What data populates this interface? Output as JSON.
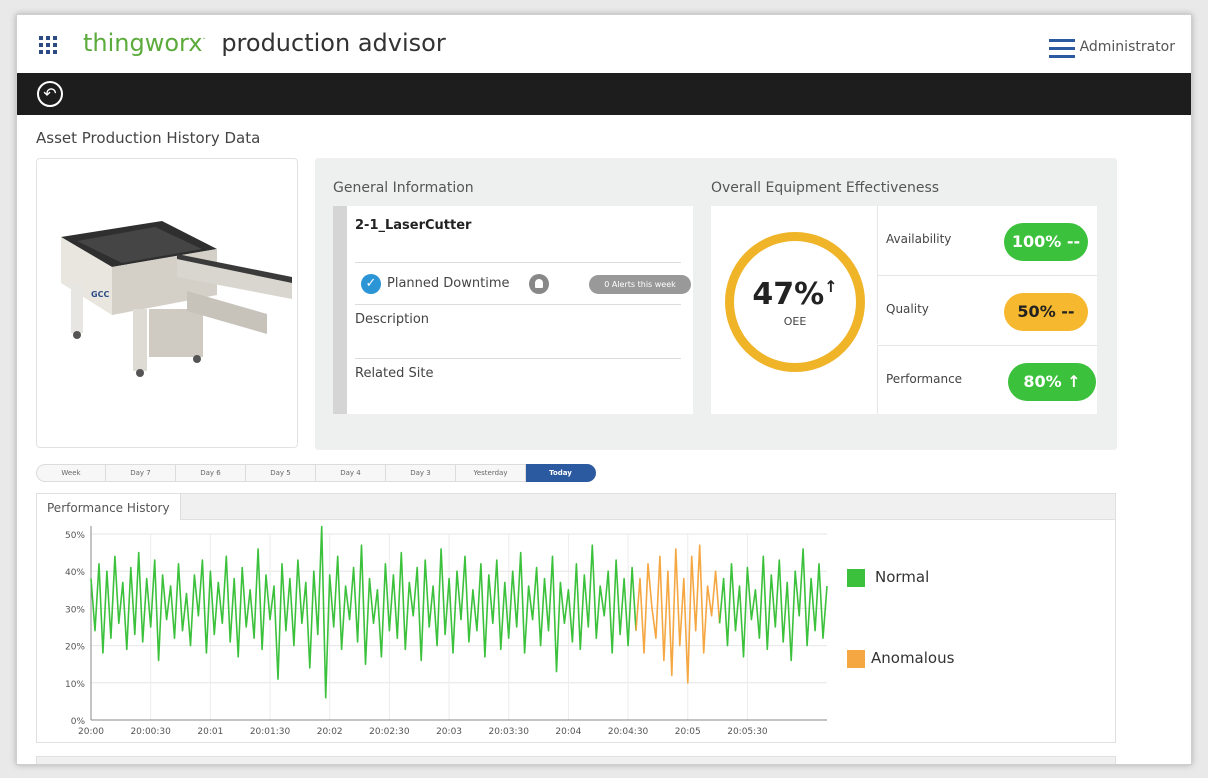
{
  "header": {
    "brand_name": "thingworx",
    "brand_mark": "·",
    "product": "production advisor",
    "user": "Administrator",
    "icons": {
      "apps": "apps-grid-icon",
      "menu": "hamburger-menu-icon",
      "back": "back-arrow-icon"
    }
  },
  "page": {
    "title": "Asset Production History Data"
  },
  "general": {
    "section_title": "General Information",
    "asset_name": "2-1_LaserCutter",
    "status": "Planned Downtime",
    "alerts": "0 Alerts this week",
    "description_label": "Description",
    "site_label": "Related Site"
  },
  "oee": {
    "section_title": "Overall Equipment Effectiveness",
    "value": "47%",
    "trend": "↑",
    "label": "OEE",
    "metrics": [
      {
        "label": "Availability",
        "value": "100% --",
        "color": "#3cc13c"
      },
      {
        "label": "Quality",
        "value": "50% --",
        "color": "#f5b82e"
      },
      {
        "label": "Performance",
        "value": "80% ↑",
        "color": "#3cc13c"
      }
    ]
  },
  "timeline": {
    "tabs": [
      "Week",
      "Day 7",
      "Day 6",
      "Day 5",
      "Day 4",
      "Day 3",
      "Yesterday",
      "Today"
    ],
    "selected": "Today"
  },
  "chart": {
    "tab_label": "Performance History",
    "legend": [
      {
        "label": "Normal",
        "color": "#3cc13c"
      },
      {
        "label": "Anomalous",
        "color": "#f5a742"
      }
    ]
  },
  "chart_data": {
    "type": "line",
    "title": "Performance History",
    "xlabel": "",
    "ylabel": "",
    "ylim": [
      0,
      50
    ],
    "yticks": [
      "0%",
      "10%",
      "20%",
      "30%",
      "40%",
      "50%"
    ],
    "xticks": [
      "20:00",
      "20:00:30",
      "20:01",
      "20:01:30",
      "20:02",
      "20:02:30",
      "20:03",
      "20:03:30",
      "20:04",
      "20:04:30",
      "20:05",
      "20:05:30"
    ],
    "x_range_seconds": [
      0,
      370
    ],
    "series": [
      {
        "name": "Normal",
        "color": "#3cc13c",
        "t": [
          0,
          2,
          4,
          6,
          8,
          10,
          12,
          14,
          16,
          18,
          20,
          22,
          24,
          26,
          28,
          30,
          32,
          34,
          36,
          38,
          40,
          42,
          44,
          46,
          48,
          50,
          52,
          54,
          56,
          58,
          60,
          62,
          64,
          66,
          68,
          70,
          72,
          74,
          76,
          78,
          80,
          82,
          84,
          86,
          88,
          90,
          92,
          94,
          96,
          98,
          100,
          102,
          104,
          106,
          108,
          110,
          112,
          114,
          116,
          118,
          120,
          122,
          124,
          126,
          128,
          130,
          132,
          134,
          136,
          138,
          140,
          142,
          144,
          146,
          148,
          150,
          152,
          154,
          156,
          158,
          160,
          162,
          164,
          166,
          168,
          170,
          172,
          174,
          176,
          178,
          180,
          182,
          184,
          186,
          188,
          190,
          192,
          194,
          196,
          198,
          200,
          202,
          204,
          206,
          208,
          210,
          212,
          214,
          216,
          218,
          220,
          222,
          224,
          226,
          228,
          230,
          232,
          234,
          236,
          238,
          240,
          242,
          244,
          246,
          248,
          250,
          252,
          254,
          256,
          258,
          260,
          262,
          264,
          266,
          268,
          270,
          272,
          274
        ],
        "values": [
          38,
          24,
          42,
          18,
          40,
          22,
          44,
          26,
          37,
          19,
          41,
          23,
          45,
          21,
          38,
          25,
          43,
          16,
          39,
          27,
          36,
          22,
          42,
          24,
          34,
          20,
          39,
          28,
          43,
          18,
          40,
          23,
          37,
          26,
          44,
          21,
          38,
          17,
          41,
          25,
          35,
          22,
          46,
          19,
          39,
          27,
          36,
          11,
          42,
          24,
          38,
          20,
          43,
          26,
          37,
          14,
          40,
          23,
          52,
          6,
          39,
          25,
          44,
          19,
          36,
          27,
          41,
          21,
          47,
          15,
          38,
          26,
          35,
          17,
          42,
          24,
          39,
          22,
          45,
          19,
          37,
          28,
          41,
          16,
          43,
          25,
          36,
          20,
          46,
          23,
          38,
          18,
          40,
          27,
          44,
          21,
          35,
          24,
          42,
          17,
          39,
          26,
          43,
          19,
          37,
          22,
          40,
          25,
          45,
          18,
          36,
          27,
          41,
          20,
          38,
          24,
          44,
          13,
          37,
          26,
          35,
          21,
          42,
          19,
          39,
          25,
          47,
          22,
          36,
          28,
          40,
          18,
          43,
          23,
          38,
          20,
          41,
          24
        ]
      },
      {
        "name": "Anomalous",
        "color": "#f5a742",
        "t": [
          274,
          276,
          278,
          280,
          282,
          284,
          286,
          288,
          290,
          292,
          294,
          296,
          298,
          300,
          302,
          304,
          306,
          308,
          310,
          312,
          314,
          316
        ],
        "values": [
          24,
          38,
          18,
          42,
          30,
          22,
          44,
          16,
          40,
          12,
          46,
          20,
          38,
          10,
          44,
          24,
          47,
          18,
          36,
          28,
          40,
          26
        ]
      },
      {
        "name": "Normal",
        "color": "#3cc13c",
        "t": [
          316,
          318,
          320,
          322,
          324,
          326,
          328,
          330,
          332,
          334,
          336,
          338,
          340,
          342,
          344,
          346,
          348,
          350,
          352,
          354,
          356,
          358,
          360,
          362,
          364,
          366,
          368,
          370
        ],
        "values": [
          26,
          38,
          20,
          42,
          24,
          36,
          17,
          41,
          27,
          35,
          22,
          44,
          19,
          39,
          25,
          43,
          21,
          37,
          16,
          40,
          28,
          46,
          20,
          38,
          24,
          42,
          22,
          36
        ]
      }
    ]
  }
}
